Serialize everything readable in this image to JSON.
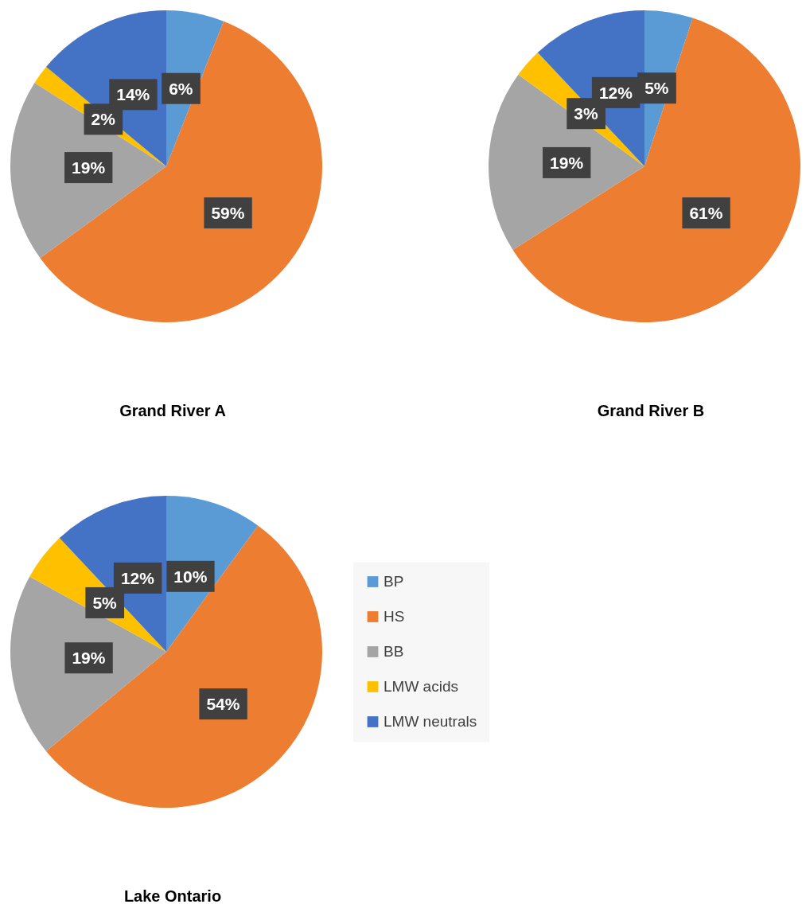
{
  "chart_data": [
    {
      "type": "pie",
      "title": "Grand River A",
      "categories": [
        null,
        null,
        null,
        null,
        null
      ],
      "values": [
        6,
        59,
        19,
        2,
        14
      ],
      "colors": [
        "#5b9bd5",
        "#ed7d31",
        "#a5a5a5",
        "#ffc000",
        "#4472c4"
      ],
      "value_labels": [
        "6%",
        "59%",
        "19%",
        "2%",
        "14%"
      ],
      "legend": false
    },
    {
      "type": "pie",
      "title": "Grand River B",
      "categories": [
        null,
        null,
        null,
        null,
        null
      ],
      "values": [
        5,
        61,
        19,
        3,
        12
      ],
      "colors": [
        "#5b9bd5",
        "#ed7d31",
        "#a5a5a5",
        "#ffc000",
        "#4472c4"
      ],
      "value_labels": [
        "5%",
        "61%",
        "19%",
        "3%",
        "12%"
      ],
      "legend": false
    },
    {
      "type": "pie",
      "title": "Lake Ontario",
      "categories": [
        "BP",
        "HS",
        "BB",
        "LMW acids",
        "LMW neutrals"
      ],
      "values": [
        10,
        54,
        19,
        5,
        12
      ],
      "colors": [
        "#5b9bd5",
        "#ed7d31",
        "#a5a5a5",
        "#ffc000",
        "#4472c4"
      ],
      "value_labels": [
        "10%",
        "54%",
        "19%",
        "5%",
        "12%"
      ],
      "legend": "right"
    }
  ]
}
